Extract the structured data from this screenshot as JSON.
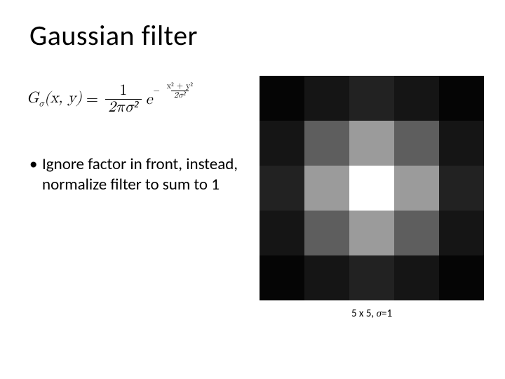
{
  "title": "Gaussian filter",
  "formula": {
    "lhs_G": "G",
    "lhs_sub": "σ",
    "lhs_args": "(x, y)",
    "eq": " = ",
    "frac_num": "1",
    "frac_den": "2πσ²",
    "e": "e",
    "exp_minus": "−",
    "exp_num": "x² + y²",
    "exp_den": "2σ²"
  },
  "bullet": "Ignore factor in front, instead, normalize filter to sum to 1",
  "kernel": {
    "size": 5,
    "values": [
      [
        0.018,
        0.082,
        0.135,
        0.082,
        0.018
      ],
      [
        0.082,
        0.367,
        0.607,
        0.367,
        0.082
      ],
      [
        0.135,
        0.607,
        1.0,
        0.607,
        0.135
      ],
      [
        0.082,
        0.367,
        0.607,
        0.367,
        0.082
      ],
      [
        0.018,
        0.082,
        0.135,
        0.082,
        0.018
      ]
    ],
    "caption_prefix": "5 x 5, ",
    "caption_sigma": "σ",
    "caption_suffix": "=1"
  },
  "colors": {
    "background": "#ffffff",
    "text": "#000000"
  },
  "typography": {
    "title_fontsize": 40,
    "body_fontsize": 23,
    "caption_fontsize": 15
  }
}
